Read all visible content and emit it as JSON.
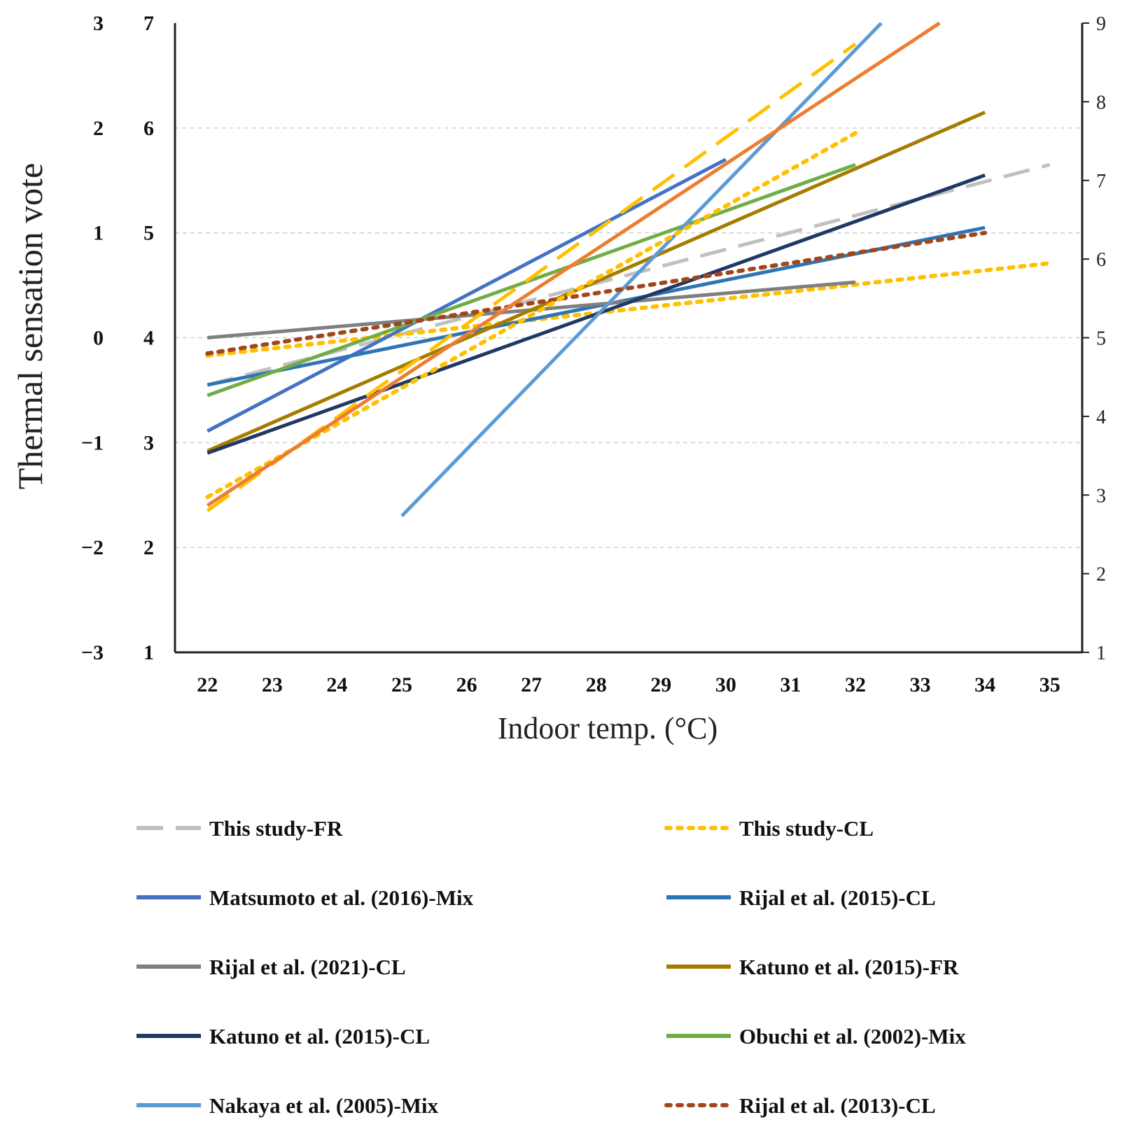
{
  "chart_data": {
    "type": "line",
    "title": "",
    "xlabel": "Indoor temp. (°C)",
    "ylabel": "Thermal sensation vote",
    "x_ticks": [
      "22",
      "23",
      "24",
      "25",
      "26",
      "27",
      "28",
      "29",
      "30",
      "31",
      "32",
      "33",
      "34",
      "35"
    ],
    "xlim": [
      21.5,
      35.5
    ],
    "ylim": [
      -3,
      3
    ],
    "y_ticks_tsv": [
      "3",
      "2",
      "1",
      "0",
      "−1",
      "−2",
      "−3"
    ],
    "y_ticks_scale7": [
      "7",
      "6",
      "5",
      "4",
      "3",
      "2",
      "1"
    ],
    "y_ticks_scale9": [
      "9",
      "8",
      "7",
      "6",
      "5",
      "4",
      "3",
      "2",
      "1"
    ],
    "grid": "horizontal dashed",
    "legend_position": "bottom",
    "series": [
      {
        "name": "This study-FR",
        "color": "#c0c0c0",
        "style": "dashed",
        "x": [
          22,
          35
        ],
        "y": [
          -0.45,
          1.65
        ]
      },
      {
        "name": "This study-CL",
        "color": "#ffc000",
        "style": "dotted",
        "x": [
          22,
          35
        ],
        "y": [
          -0.17,
          0.71
        ]
      },
      {
        "name": "Matsumoto et al. (2016)-Mix",
        "color": "#4472c4",
        "style": "solid",
        "x": [
          22,
          30
        ],
        "y": [
          -0.89,
          1.7
        ]
      },
      {
        "name": "Rijal et al. (2015)-CL",
        "color": "#2e75b6",
        "style": "solid",
        "x": [
          22,
          34
        ],
        "y": [
          -0.45,
          1.05
        ]
      },
      {
        "name": "Rijal et al. (2021)-CL",
        "color": "#7f7f7f",
        "style": "solid",
        "x": [
          22,
          32
        ],
        "y": [
          0.0,
          0.53
        ]
      },
      {
        "name": "Katuno et al. (2015)-FR",
        "color": "#a67c00",
        "style": "solid",
        "x": [
          22,
          34
        ],
        "y": [
          -1.08,
          2.15
        ]
      },
      {
        "name": "Katuno et al. (2015)-CL",
        "color": "#203864",
        "style": "solid",
        "x": [
          22,
          34
        ],
        "y": [
          -1.1,
          1.55
        ]
      },
      {
        "name": "Obuchi et al. (2002)-Mix",
        "color": "#70ad47",
        "style": "solid",
        "x": [
          22,
          32
        ],
        "y": [
          -0.55,
          1.65
        ]
      },
      {
        "name": "Nakaya et al. (2005)-Mix",
        "color": "#5b9bd5",
        "style": "solid",
        "x": [
          25,
          32.4
        ],
        "y": [
          -1.7,
          3.0
        ]
      },
      {
        "name": "Rijal et al. (2013)-CL",
        "color": "#a0461a",
        "style": "dotted",
        "x": [
          22,
          34
        ],
        "y": [
          -0.15,
          1.0
        ]
      },
      {
        "name": "",
        "color": "#ffc000",
        "style": "dashed",
        "x": [
          22,
          32
        ],
        "y": [
          -1.65,
          2.8
        ]
      },
      {
        "name": "",
        "color": "#ffc000",
        "style": "dotted",
        "x": [
          22,
          32
        ],
        "y": [
          -1.52,
          1.95
        ]
      },
      {
        "name": "",
        "color": "#ed7d31",
        "style": "solid",
        "x": [
          22,
          33.3
        ],
        "y": [
          -1.6,
          3.0
        ]
      }
    ]
  }
}
